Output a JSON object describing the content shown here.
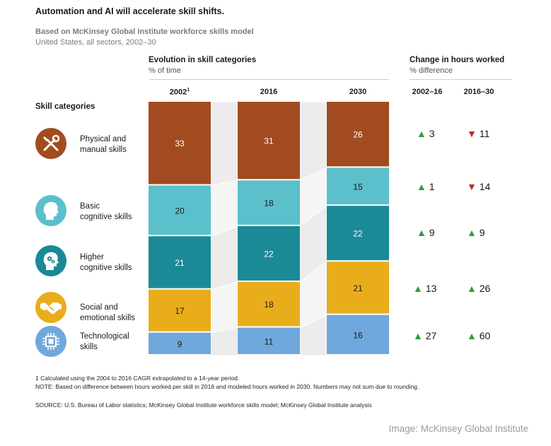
{
  "title": "Automation and AI will accelerate skill shifts.",
  "subtitle": "Based on McKinsey Global Institute workforce skills model",
  "subtitle2": "United States, all sectors, 2002–30",
  "evolution": {
    "heading": "Evolution in skill categories",
    "unit": "% of time"
  },
  "change": {
    "heading": "Change in hours worked",
    "unit": "% difference",
    "col1": "2002–16",
    "col2": "2016–30"
  },
  "skill_heading": "Skill categories",
  "categories": [
    {
      "line1": "Physical and",
      "line2": "manual skills",
      "icon": "tools-icon",
      "color": "#a34b20"
    },
    {
      "line1": "Basic",
      "line2": "cognitive skills",
      "icon": "head-icon",
      "color": "#5bbfcc"
    },
    {
      "line1": "Higher",
      "line2": "cognitive skills",
      "icon": "head-gears-icon",
      "color": "#1a8a96"
    },
    {
      "line1": "Social and",
      "line2": "emotional skills",
      "icon": "handshake-icon",
      "color": "#e9ad1c"
    },
    {
      "line1": "Technological",
      "line2": "skills",
      "icon": "chip-icon",
      "color": "#6fa8dc"
    }
  ],
  "changes": [
    {
      "a": {
        "dir": "up",
        "value": "3"
      },
      "b": {
        "dir": "down",
        "value": "11"
      }
    },
    {
      "a": {
        "dir": "up",
        "value": "1"
      },
      "b": {
        "dir": "down",
        "value": "14"
      }
    },
    {
      "a": {
        "dir": "up",
        "value": "9"
      },
      "b": {
        "dir": "up",
        "value": "9"
      }
    },
    {
      "a": {
        "dir": "up",
        "value": "13"
      },
      "b": {
        "dir": "up",
        "value": "26"
      }
    },
    {
      "a": {
        "dir": "up",
        "value": "27"
      },
      "b": {
        "dir": "up",
        "value": "60"
      }
    }
  ],
  "up_color": "#2e9e3a",
  "down_color": "#c0272d",
  "chart_data": {
    "type": "bar",
    "stacked": true,
    "title": "Evolution in skill categories",
    "ylabel": "% of time",
    "categories": [
      "2002",
      "2016",
      "2030"
    ],
    "category_footnote": "1",
    "series": [
      {
        "name": "Physical and manual skills",
        "values": [
          33,
          31,
          26
        ]
      },
      {
        "name": "Basic cognitive skills",
        "values": [
          20,
          18,
          15
        ]
      },
      {
        "name": "Higher cognitive skills",
        "values": [
          21,
          22,
          22
        ]
      },
      {
        "name": "Social and emotional skills",
        "values": [
          17,
          18,
          21
        ]
      },
      {
        "name": "Technological skills",
        "values": [
          9,
          11,
          16
        ]
      }
    ]
  },
  "notes": {
    "footnote": "1  Calculated using the 2004 to 2016 CAGR extrapolated to a 14-year period.",
    "note": "NOTE: Based on difference between hours worked per skill in 2016 and modeled hours worked in 2030. Numbers may not sum due to rounding.",
    "source": "SOURCE:  U.S. Bureau of Labor statistics; McKinsey Global Institute workforce skills model; McKinsey Global Institute analysis"
  },
  "credit": "Image: McKinsey Global Institute"
}
